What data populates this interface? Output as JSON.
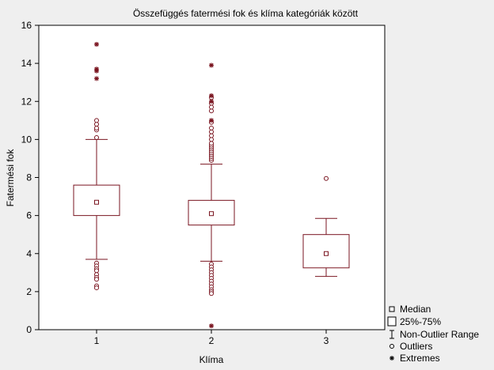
{
  "chart_data": {
    "type": "box",
    "title": "Összefüggés fatermési fok és klíma kategóriák között",
    "xlabel": "Klíma",
    "ylabel": "Fatermési fok",
    "categories": [
      "1",
      "2",
      "3"
    ],
    "ylim": [
      0,
      16
    ],
    "yticks": [
      0,
      2,
      4,
      6,
      8,
      10,
      12,
      14,
      16
    ],
    "grid": false,
    "legend_position": "bottom-right",
    "legend": [
      "Median",
      "25%-75%",
      "Non-Outlier Range",
      "Outliers",
      "Extremes"
    ],
    "colors": {
      "mark": "#7a1520",
      "background": "#efefef",
      "plot": "#ffffff",
      "axis": "#000000"
    },
    "boxes": [
      {
        "category": "1",
        "median": 6.7,
        "q1": 6.0,
        "q3": 7.6,
        "whisker_low": 3.7,
        "whisker_high": 10.0,
        "outliers": [
          10.1,
          10.5,
          10.6,
          10.8,
          11.0,
          3.5,
          3.35,
          3.2,
          3.1,
          2.9,
          2.75,
          2.65,
          2.3,
          2.2
        ],
        "extremes": [
          15.0,
          13.7,
          13.6,
          13.2
        ]
      },
      {
        "category": "2",
        "median": 6.1,
        "q1": 5.5,
        "q3": 6.8,
        "whisker_low": 3.6,
        "whisker_high": 8.7,
        "outliers": [
          8.9,
          9.0,
          9.1,
          9.2,
          9.3,
          9.4,
          9.5,
          9.6,
          9.7,
          9.8,
          10.0,
          10.2,
          10.4,
          10.6,
          10.9,
          11.5,
          11.7,
          11.9,
          12.2,
          3.45,
          3.3,
          3.15,
          3.0,
          2.85,
          2.7,
          2.55,
          2.4,
          2.25,
          2.1,
          2.0,
          1.9
        ],
        "extremes": [
          13.9,
          12.3,
          12.0,
          11.0,
          0.2
        ]
      },
      {
        "category": "3",
        "median": 4.0,
        "q1": 3.25,
        "q3": 5.0,
        "whisker_low": 2.8,
        "whisker_high": 5.85,
        "outliers": [
          7.95
        ],
        "extremes": []
      }
    ]
  }
}
